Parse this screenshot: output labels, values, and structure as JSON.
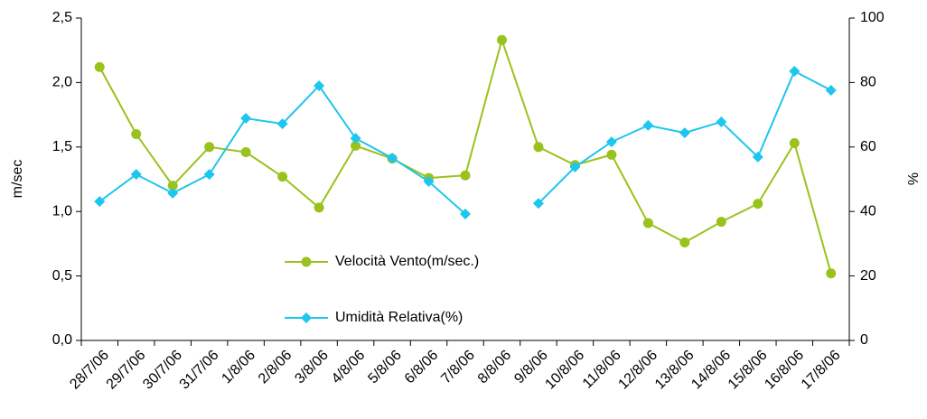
{
  "chart_data": {
    "type": "line",
    "categories": [
      "28/7/06",
      "29/7/06",
      "30/7/06",
      "31/7/06",
      "1/8/06",
      "2/8/06",
      "3/8/06",
      "4/8/06",
      "5/8/06",
      "6/8/06",
      "7/8/06",
      "8/8/06",
      "9/8/06",
      "10/8/06",
      "11/8/06",
      "12/8/06",
      "13/8/06",
      "14/8/06",
      "15/8/06",
      "16/8/06",
      "17/8/06"
    ],
    "series": [
      {
        "name": "Velocità Vento(m/sec.)",
        "color": "#99c31c",
        "marker": "circle",
        "values": [
          2.12,
          1.6,
          1.2,
          1.5,
          1.46,
          1.27,
          1.03,
          1.51,
          1.41,
          1.26,
          1.28,
          2.33,
          1.5,
          1.36,
          1.44,
          0.91,
          0.76,
          0.92,
          1.06,
          1.53,
          0.52
        ]
      },
      {
        "name": "Umidità Relativa(%)",
        "color": "#1cc6ee",
        "marker": "diamond",
        "axis": "y2",
        "values": [
          43.1,
          51.5,
          45.7,
          51.5,
          68.9,
          67.2,
          79,
          62.7,
          56.6,
          49.3,
          39.2,
          null,
          42.5,
          53.8,
          61.6,
          66.7,
          64.4,
          67.8,
          56.9,
          83.5,
          77.6
        ]
      }
    ],
    "ylabel": "m/sec",
    "y2label": "%",
    "ylim": [
      0,
      2.5
    ],
    "yticks": [
      {
        "value": 0,
        "label": "0,0"
      },
      {
        "value": 0.5,
        "label": "0,5"
      },
      {
        "value": 1,
        "label": "1,0"
      },
      {
        "value": 1.5,
        "label": "1,5"
      },
      {
        "value": 2,
        "label": "2,0"
      },
      {
        "value": 2.5,
        "label": "2,5"
      }
    ],
    "y2lim": [
      0,
      100
    ],
    "y2ticks": [
      0,
      20,
      40,
      60,
      80,
      100
    ],
    "grid": false,
    "legend": "bottom-center"
  }
}
